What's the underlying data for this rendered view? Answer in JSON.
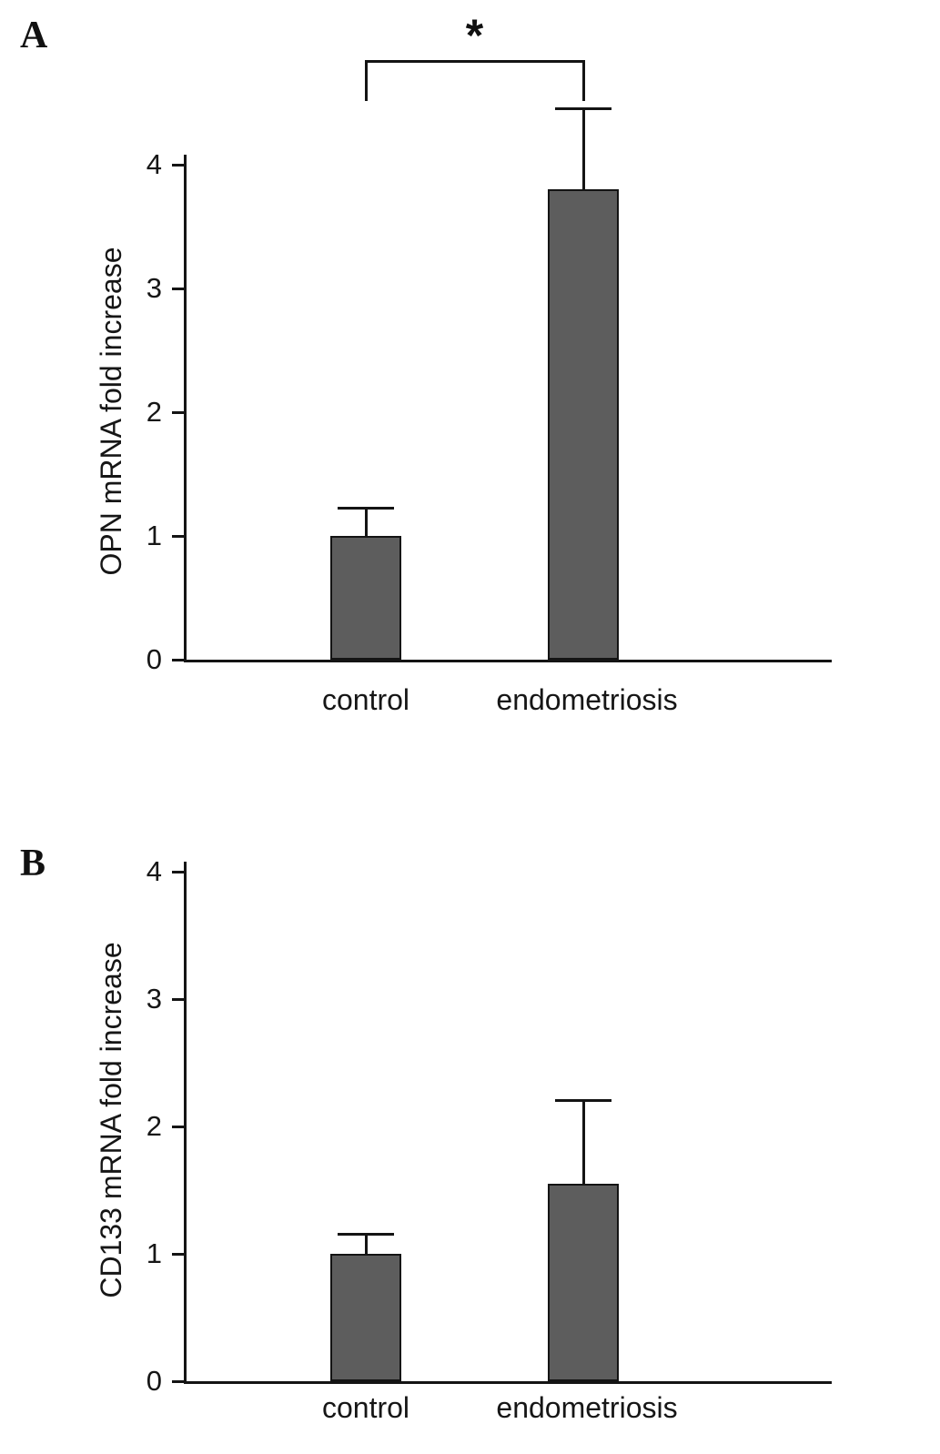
{
  "chart_data": [
    {
      "type": "bar",
      "panel_label": "A",
      "title": "",
      "ylabel": "OPN mRNA fold increase",
      "xlabel": "",
      "categories": [
        "control",
        "endometriosis"
      ],
      "values": [
        1.0,
        3.8
      ],
      "errors": [
        0.22,
        0.65
      ],
      "ylim": [
        0,
        4
      ],
      "yticks": [
        0,
        1,
        2,
        3,
        4
      ],
      "bar_color": "#5d5d5d",
      "axis_color": "#141414",
      "grid": false,
      "legend": false,
      "significance": {
        "pair": [
          0,
          1
        ],
        "label": "*"
      }
    },
    {
      "type": "bar",
      "panel_label": "B",
      "title": "",
      "ylabel": "CD133 mRNA fold increase",
      "xlabel": "",
      "categories": [
        "control",
        "endometriosis"
      ],
      "values": [
        1.0,
        1.55
      ],
      "errors": [
        0.15,
        0.65
      ],
      "ylim": [
        0,
        4
      ],
      "yticks": [
        0,
        1,
        2,
        3,
        4
      ],
      "bar_color": "#5d5d5d",
      "axis_color": "#141414",
      "grid": false,
      "legend": false,
      "significance": null
    }
  ]
}
